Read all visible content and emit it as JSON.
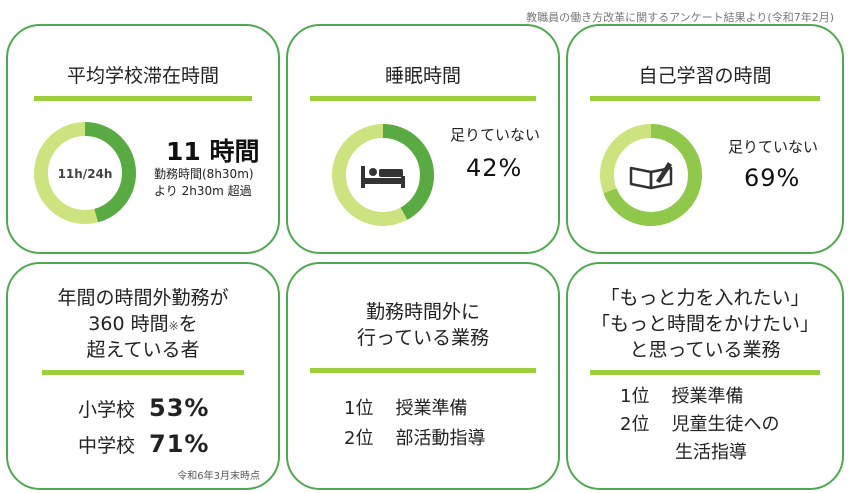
{
  "source_note": "教職員の働き方改革に関するアンケート結果より(令和7年2月)",
  "colors": {
    "border": "#4fa84f",
    "bar": "#9ccd3a",
    "ring_dark": "#5aaa44",
    "ring_light": "#cde37f",
    "ring_mid": "#8fc84a"
  },
  "card1": {
    "title": "平均学校滞在時間",
    "ring_label": "11h/24h",
    "ring_fraction": 0.458,
    "headline": "11 時間",
    "detail_line1": "勤務時間(8h30m)",
    "detail_line2": "より 2h30m 超過"
  },
  "card2": {
    "title": "睡眠時間",
    "icon": "bed-icon",
    "label": "足りていない",
    "value": "42%",
    "fraction": 0.42
  },
  "card3": {
    "title": "自己学習の時間",
    "icon": "book-pen-icon",
    "label": "足りていない",
    "value": "69%",
    "fraction": 0.69
  },
  "card4": {
    "title_line1": "年間の時間外勤務が",
    "title_line2_a": "360 時間",
    "title_line2_mark": "※",
    "title_line2_b": "を",
    "title_line3": "超えている者",
    "rows": [
      {
        "label": "小学校",
        "value": "53%"
      },
      {
        "label": "中学校",
        "value": "71%"
      }
    ],
    "footnote": "令和6年3月末時点"
  },
  "card5": {
    "title_line1": "勤務時間外に",
    "title_line2": "行っている業務",
    "items": [
      {
        "rank": "1位",
        "text": "授業準備"
      },
      {
        "rank": "2位",
        "text": "部活動指導"
      }
    ]
  },
  "card6": {
    "title_line1": "「もっと力を入れたい」",
    "title_line2": "「もっと時間をかけたい」",
    "title_line3": "と思っている業務",
    "items": [
      {
        "rank": "1位",
        "text": "授業準備"
      },
      {
        "rank": "2位",
        "text": "児童生徒への",
        "text2": "生活指導"
      }
    ]
  }
}
